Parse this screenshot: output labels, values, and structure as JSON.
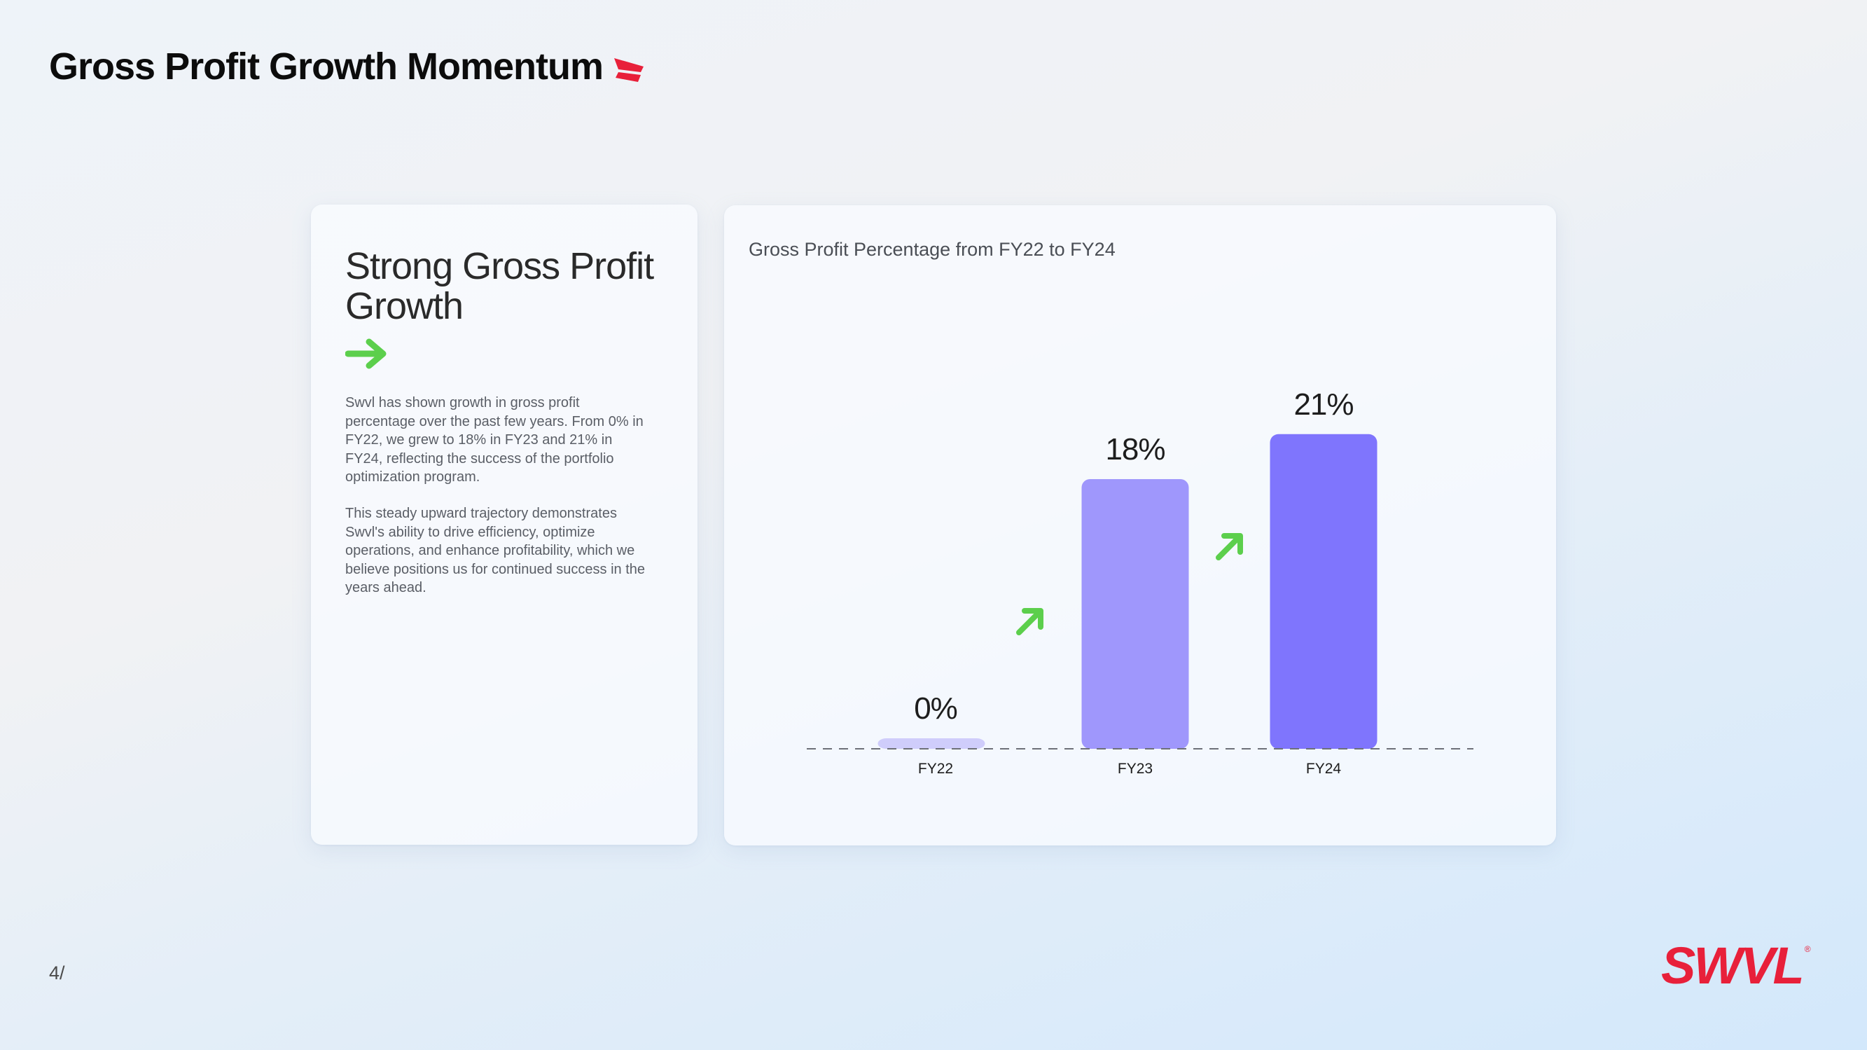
{
  "header": {
    "title": "Gross Profit Growth Momentum"
  },
  "left_card": {
    "heading": "Strong Gross Profit Growth",
    "paragraphs": [
      "Swvl has shown growth in gross profit percentage over the past few years. From 0% in FY22, we grew to 18% in FY23 and 21% in FY24, reflecting the success of the portfolio optimization program.",
      "This steady upward trajectory demonstrates Swvl's ability to drive efficiency, optimize operations, and enhance profitability, which we believe positions us for continued success in the years ahead."
    ]
  },
  "chart_data": {
    "type": "bar",
    "title": "Gross Profit Percentage from FY22 to FY24",
    "categories": [
      "FY22",
      "FY23",
      "FY24"
    ],
    "values": [
      0,
      18,
      21
    ],
    "data_labels": [
      "0%",
      "18%",
      "21%"
    ],
    "ylim": [
      0,
      23
    ],
    "bar_colors": [
      "#cfcdfb",
      "#9f97fc",
      "#7f75fd"
    ],
    "grid": false,
    "legend": "none",
    "baseline_style": "dashed"
  },
  "footer": {
    "page_number": "4/",
    "logo_text": "SWVL",
    "logo_mark": "®"
  },
  "colors": {
    "accent_red": "#e8203a",
    "accent_green": "#5ccf4c",
    "text_dark": "#0c0c0c"
  },
  "icons": {
    "title_mark": "red-chevron-icon",
    "heading_arrow": "right-arrow-icon",
    "growth_arrow": "up-right-arrow-icon"
  }
}
